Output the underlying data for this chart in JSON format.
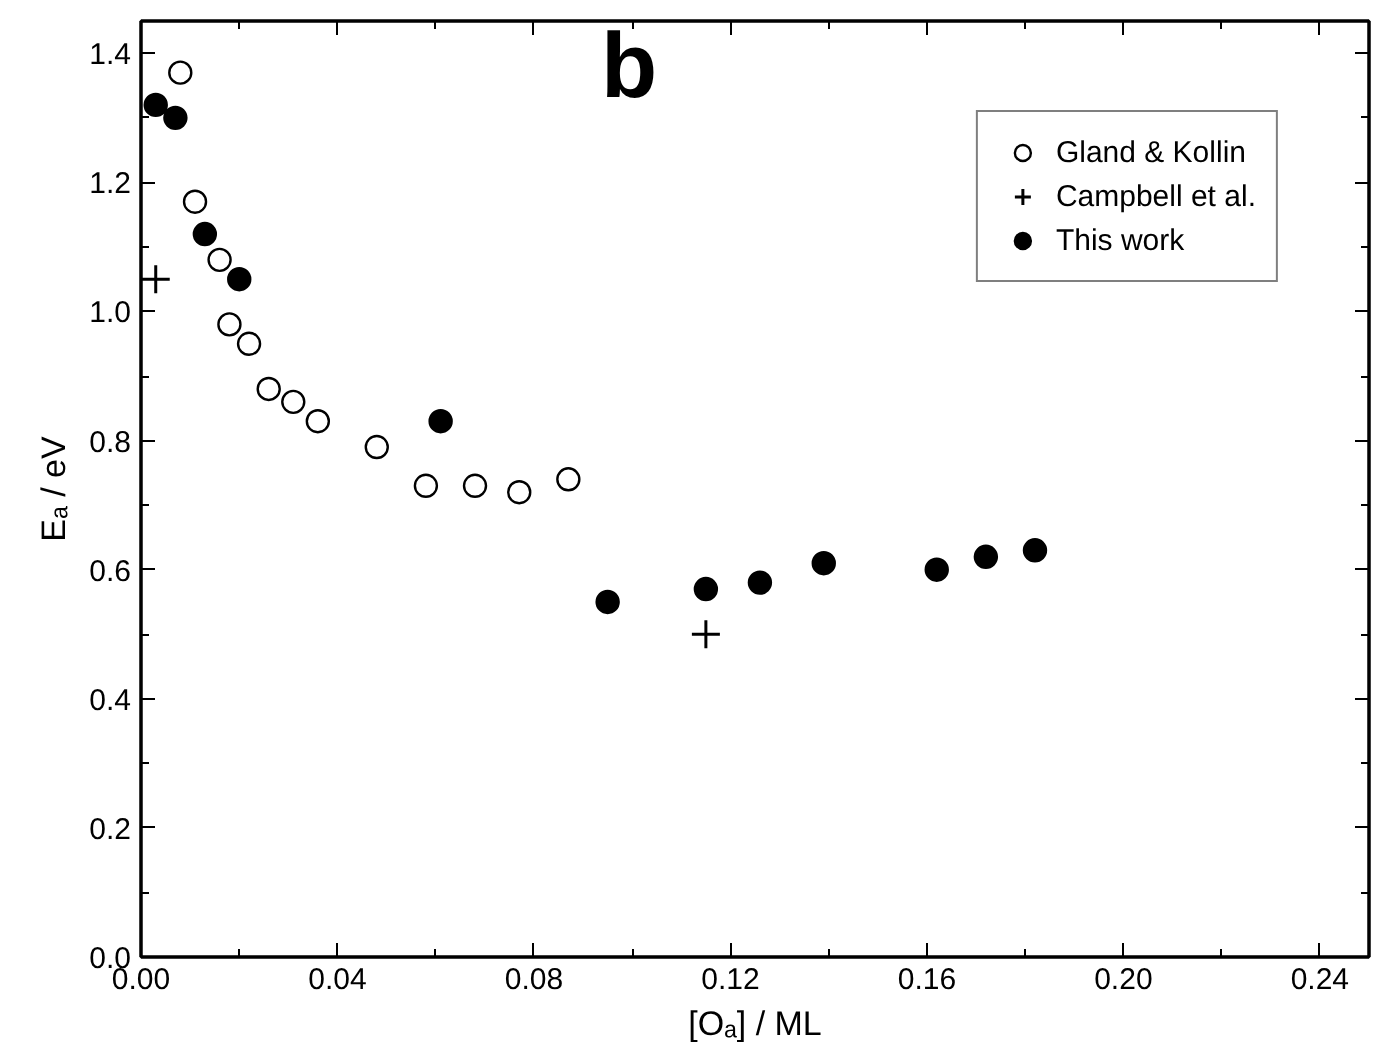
{
  "chart_data": {
    "type": "scatter",
    "xlabel": "[Oₐ] / ML",
    "ylabel": "Eₐ / eV",
    "annotations": [
      "b"
    ],
    "xlim": [
      0,
      0.25
    ],
    "ylim": [
      0,
      1.45
    ],
    "xticks": [
      {
        "value": 0,
        "label": "0.00"
      },
      0.04,
      0.08,
      0.12,
      0.16,
      {
        "value": 0.2,
        "label": "0.20"
      },
      0.24
    ],
    "yticks": [
      {
        "value": 0,
        "label": "0.0"
      },
      0.2,
      0.4,
      0.6,
      0.8,
      {
        "value": 1,
        "label": "1.0"
      },
      1.2,
      1.4
    ],
    "grid": false,
    "legend": "top right",
    "series": [
      {
        "name": "Gland & Kollin",
        "color": "#000000",
        "marker": "circle_open",
        "x": [
          0.008,
          0.011,
          0.016,
          0.018,
          0.022,
          0.026,
          0.031,
          0.036,
          0.048,
          0.058,
          0.068,
          0.077,
          0.087
        ],
        "values": [
          1.37,
          1.17,
          1.08,
          0.98,
          0.95,
          0.88,
          0.86,
          0.83,
          0.79,
          0.73,
          0.73,
          0.72,
          0.74
        ]
      },
      {
        "name": "Campbell et al.",
        "color": "#000000",
        "marker": "cross",
        "x": [
          0.003,
          0.115
        ],
        "values": [
          1.05,
          0.5
        ]
      },
      {
        "name": "This work",
        "color": "#000000",
        "marker": "circle",
        "x": [
          0.003,
          0.007,
          0.013,
          0.02,
          0.061,
          0.095,
          0.115,
          0.126,
          0.139,
          0.162,
          0.172,
          0.182
        ],
        "values": [
          1.32,
          1.3,
          1.12,
          1.05,
          0.83,
          0.55,
          0.57,
          0.58,
          0.61,
          0.6,
          0.62,
          0.63
        ]
      }
    ]
  }
}
